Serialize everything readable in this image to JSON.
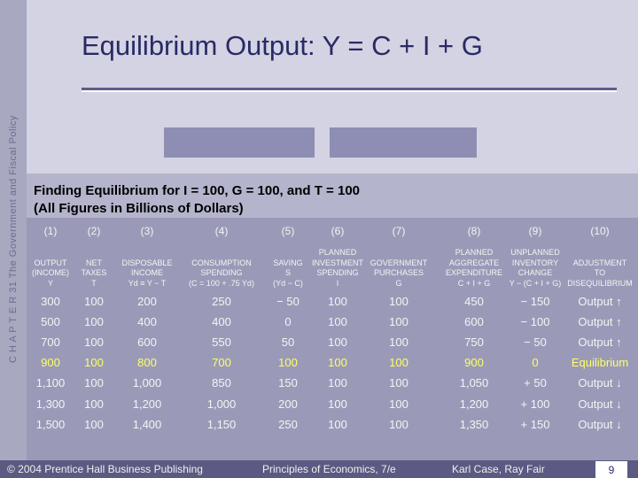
{
  "chapter": "C H A P T E R 31  The Government and Fiscal Policy",
  "title": "Equilibrium Output:  Y = C + I + G",
  "table": {
    "caption": [
      "Finding Equilibrium for I = 100, G = 100, and T = 100",
      "(All Figures in Billions of Dollars)"
    ],
    "column_numbers": [
      "(1)",
      "(2)",
      "(3)",
      "(4)",
      "(5)",
      "(6)",
      "(7)",
      "(8)",
      "(9)",
      "(10)"
    ],
    "column_labels": [
      [
        "OUTPUT",
        "(INCOME)",
        "Y"
      ],
      [
        "NET",
        "TAXES",
        "T"
      ],
      [
        "DISPOSABLE",
        "INCOME",
        "Yd ≡ Y − T"
      ],
      [
        "CONSUMPTION",
        "SPENDING",
        "(C = 100 + .75 Yd)"
      ],
      [
        "SAVING",
        "S",
        "(Yd − C)"
      ],
      [
        "PLANNED",
        "INVESTMENT",
        "SPENDING",
        "I"
      ],
      [
        "GOVERNMENT",
        "PURCHASES",
        "G"
      ],
      [
        "PLANNED",
        "AGGREGATE",
        "EXPENDITURE",
        "C + I + G"
      ],
      [
        "UNPLANNED",
        "INVENTORY",
        "CHANGE",
        "Y − (C + I + G)"
      ],
      [
        "ADJUSTMENT",
        "TO",
        "DISEQUILIBRIUM"
      ]
    ],
    "rows": [
      [
        "300",
        "100",
        "200",
        "250",
        "− 50",
        "100",
        "100",
        "450",
        "− 150",
        "Output ↑"
      ],
      [
        "500",
        "100",
        "400",
        "400",
        "0",
        "100",
        "100",
        "600",
        "− 100",
        "Output ↑"
      ],
      [
        "700",
        "100",
        "600",
        "550",
        "50",
        "100",
        "100",
        "750",
        "− 50",
        "Output ↑"
      ],
      [
        "900",
        "100",
        "800",
        "700",
        "100",
        "100",
        "100",
        "900",
        "0",
        "Equilibrium"
      ],
      [
        "1,100",
        "100",
        "1,000",
        "850",
        "150",
        "100",
        "100",
        "1,050",
        "+ 50",
        "Output ↓"
      ],
      [
        "1,300",
        "100",
        "1,200",
        "1,000",
        "200",
        "100",
        "100",
        "1,200",
        "+ 100",
        "Output ↓"
      ],
      [
        "1,500",
        "100",
        "1,400",
        "1,150",
        "250",
        "100",
        "100",
        "1,350",
        "+ 150",
        "Output ↓"
      ]
    ]
  },
  "footer": {
    "copyright": "© 2004 Prentice Hall Business Publishing",
    "book": "Principles of Economics, 7/e",
    "authors": "Karl Case, Ray Fair",
    "page": "9"
  }
}
